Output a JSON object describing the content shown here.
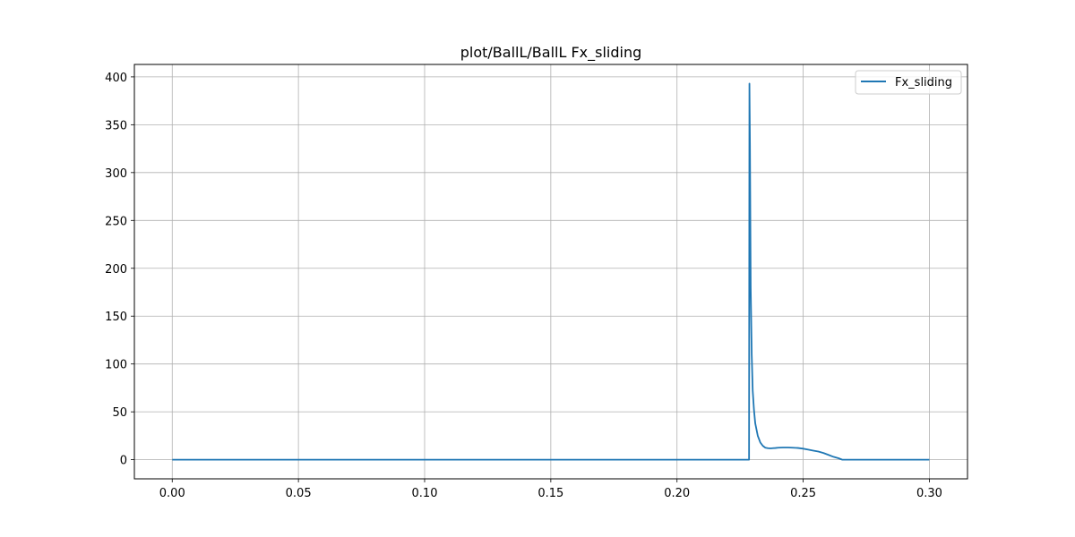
{
  "chart_data": {
    "type": "line",
    "title": "plot/BallL/BallL Fx_sliding",
    "xlabel": "",
    "ylabel": "",
    "xlim": [
      -0.015,
      0.3151
    ],
    "ylim": [
      -20,
      413
    ],
    "xticks": [
      0.0,
      0.05,
      0.1,
      0.15,
      0.2,
      0.25,
      0.3
    ],
    "xtick_labels": [
      "0.00",
      "0.05",
      "0.10",
      "0.15",
      "0.20",
      "0.25",
      "0.30"
    ],
    "yticks": [
      0,
      50,
      100,
      150,
      200,
      250,
      300,
      350,
      400
    ],
    "ytick_labels": [
      "0",
      "50",
      "100",
      "150",
      "200",
      "250",
      "300",
      "350",
      "400"
    ],
    "grid": true,
    "legend_position": "top-right",
    "series": [
      {
        "name": "Fx_sliding",
        "color": "#1f77b4",
        "x": [
          0.0,
          0.05,
          0.1,
          0.15,
          0.2,
          0.2285,
          0.22855,
          0.2287,
          0.2289,
          0.2292,
          0.2296,
          0.23,
          0.2305,
          0.231,
          0.232,
          0.233,
          0.234,
          0.235,
          0.236,
          0.237,
          0.238,
          0.239,
          0.24,
          0.242,
          0.244,
          0.246,
          0.248,
          0.25,
          0.252,
          0.254,
          0.256,
          0.258,
          0.26,
          0.262,
          0.264,
          0.2655,
          0.27,
          0.28,
          0.29,
          0.3
        ],
        "y": [
          0,
          0,
          0,
          0,
          0,
          0,
          0,
          393,
          330,
          180,
          110,
          72,
          52,
          38,
          25,
          18,
          14.5,
          12.5,
          12,
          11.8,
          12,
          12.2,
          12.5,
          12.7,
          12.7,
          12.5,
          12.2,
          11.5,
          10.5,
          9.5,
          8.5,
          7.0,
          5.0,
          3.0,
          1.5,
          0,
          0,
          0,
          0,
          0
        ]
      }
    ]
  }
}
